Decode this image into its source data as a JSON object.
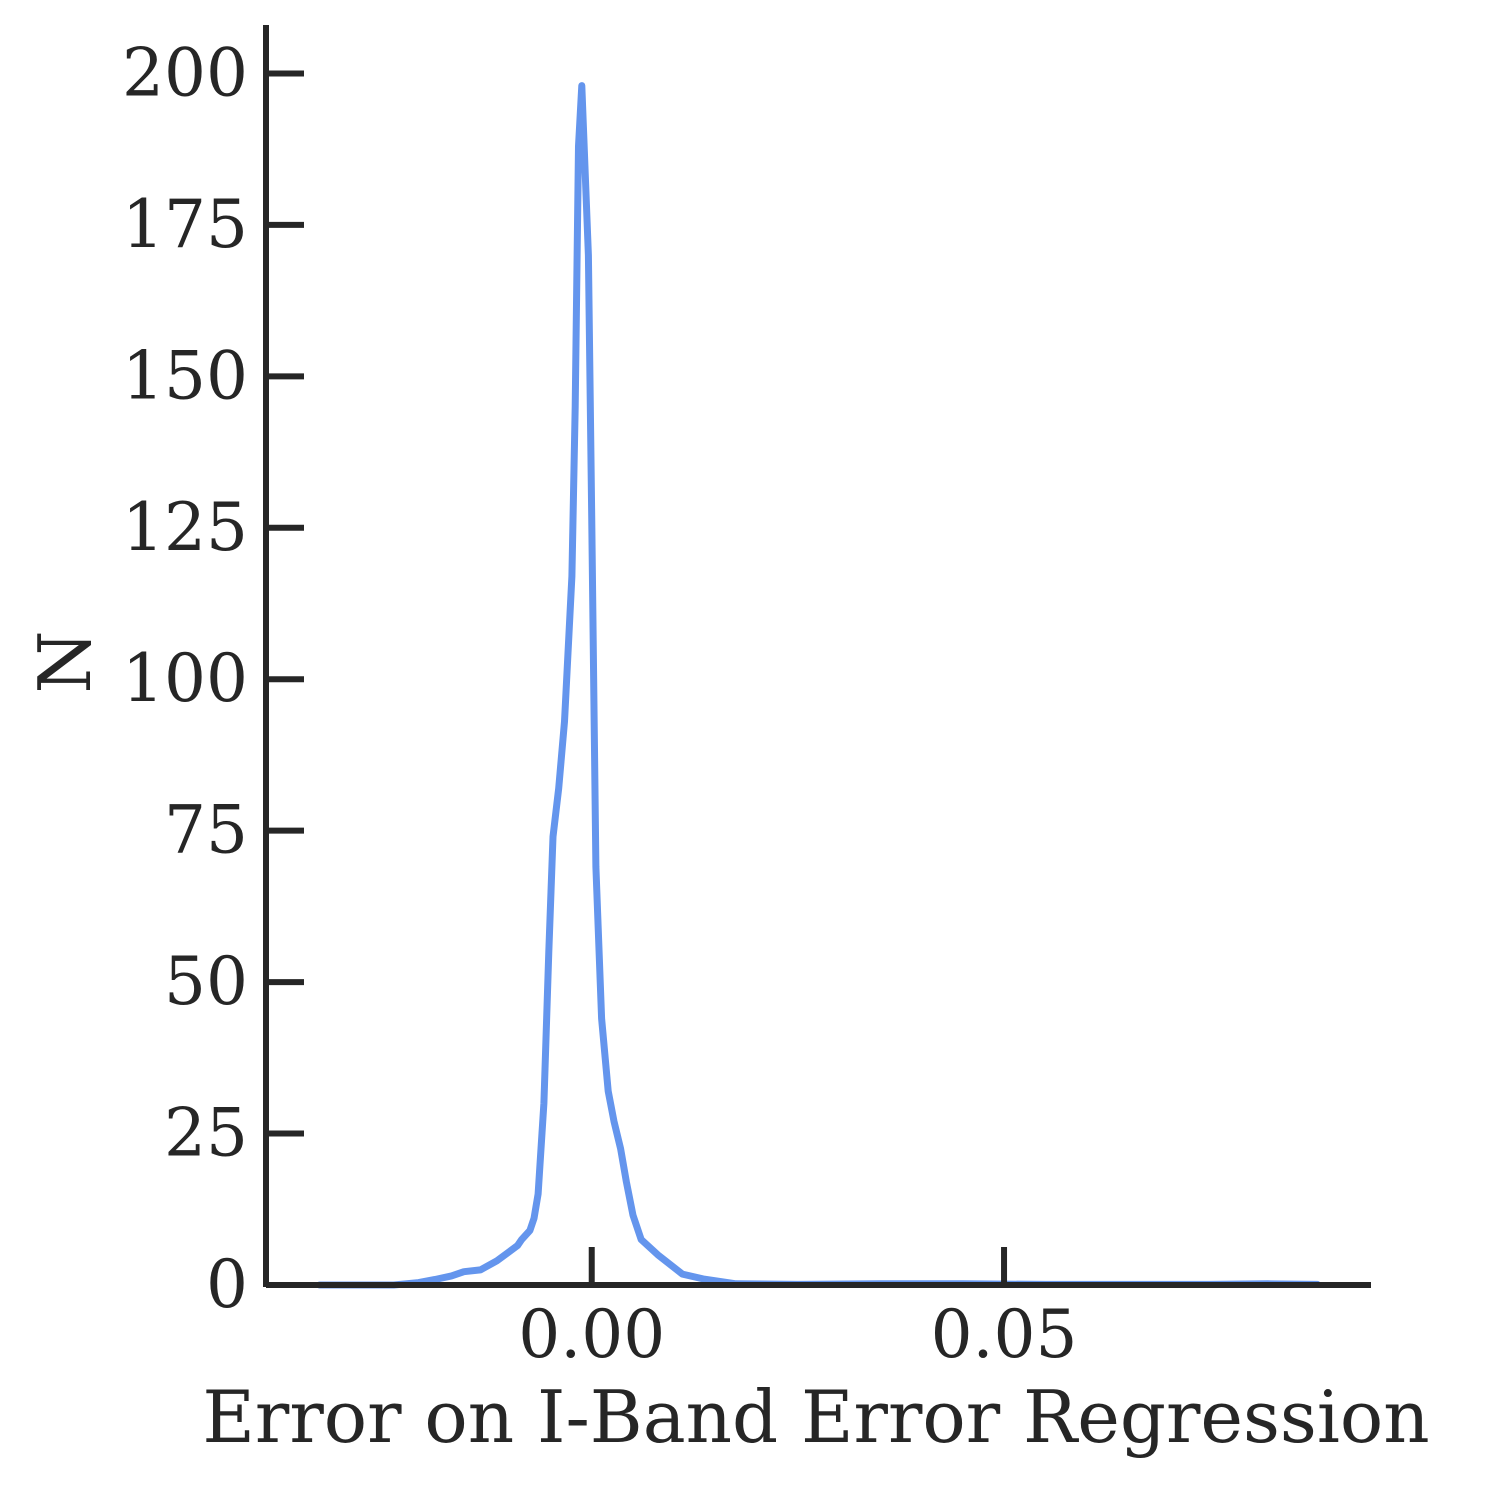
{
  "chart_data": {
    "type": "line",
    "xlabel": "Error on I-Band Error Regression",
    "ylabel": "N",
    "xlim": [
      -0.0395,
      0.0945
    ],
    "ylim": [
      0,
      208
    ],
    "xticks": [
      0.0,
      0.05
    ],
    "xtick_labels": [
      "0.00",
      "0.05"
    ],
    "yticks": [
      0,
      25,
      50,
      75,
      100,
      125,
      150,
      175,
      200
    ],
    "ytick_labels": [
      "0",
      "25",
      "50",
      "75",
      "100",
      "125",
      "150",
      "175",
      "200"
    ],
    "grid": false,
    "legend": "none",
    "colors": {
      "line": "#6495ED",
      "axes": "#262626"
    },
    "series": [
      {
        "x": [
          -0.033,
          -0.028,
          -0.024,
          -0.021,
          -0.019,
          -0.017,
          -0.0155,
          -0.0135,
          -0.0115,
          -0.01,
          -0.009,
          -0.0085,
          -0.0075,
          -0.007,
          -0.0065,
          -0.0058,
          -0.0052,
          -0.0047,
          -0.004,
          -0.0033,
          -0.0024,
          -0.002,
          -0.0016,
          -0.0012,
          -0.0004,
          0.0,
          0.0005,
          0.0012,
          0.002,
          0.0027,
          0.0035,
          0.0042,
          0.005,
          0.006,
          0.008,
          0.011,
          0.0135,
          0.0175,
          0.025,
          0.035,
          0.045,
          0.055,
          0.065,
          0.075,
          0.082,
          0.088
        ],
        "y": [
          0,
          0,
          0,
          0.4,
          0.9,
          1.5,
          2.2,
          2.5,
          4.0,
          5.5,
          6.5,
          7.5,
          9.0,
          11.0,
          15.0,
          30.0,
          55.0,
          74.0,
          82.0,
          93.0,
          117.0,
          145.0,
          188.0,
          198.0,
          170.0,
          127.0,
          69.0,
          44.0,
          32.0,
          27.0,
          22.5,
          17.0,
          11.5,
          7.5,
          5.0,
          1.8,
          1.0,
          0.2,
          0.1,
          0.2,
          0.2,
          0.1,
          0.1,
          0.1,
          0.2,
          0.1
        ]
      }
    ]
  }
}
